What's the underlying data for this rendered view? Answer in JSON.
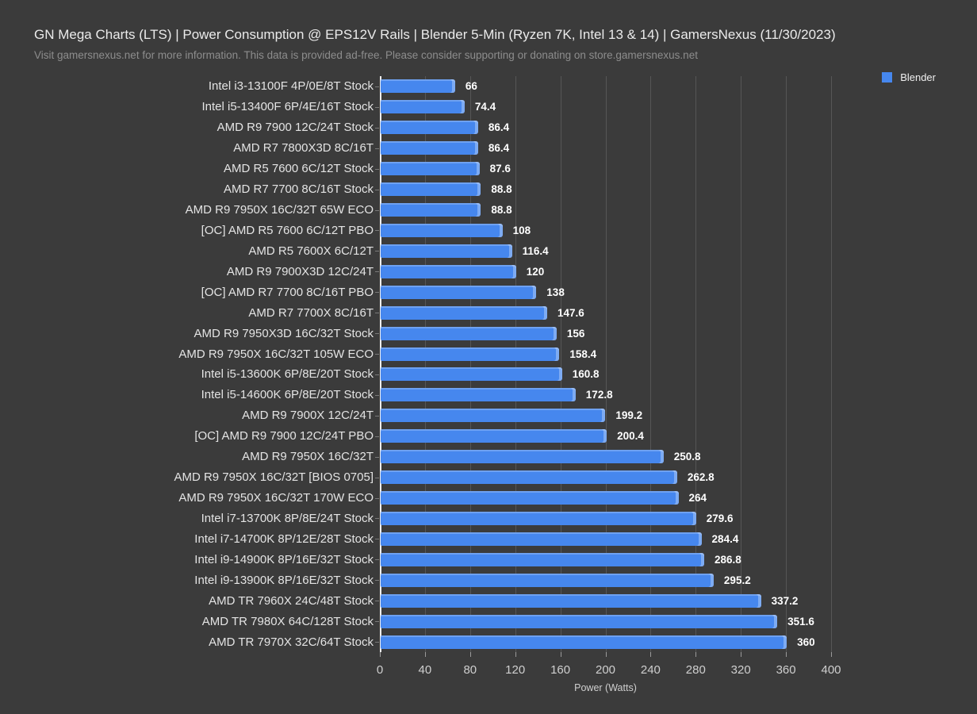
{
  "header": {
    "title": "GN Mega Charts (LTS) | Power Consumption @ EPS12V Rails | Blender 5-Min (Ryzen 7K, Intel 13 & 14) | GamersNexus (11/30/2023)",
    "subtitle": "Visit gamersnexus.net for more information. This data is provided ad-free. Please consider supporting or donating on store.gamersnexus.net"
  },
  "legend": {
    "position": "top-right",
    "items": [
      {
        "label": "Blender",
        "color": "#4687ee"
      }
    ]
  },
  "colors": {
    "background": "#3b3b3b",
    "bar": "#4687ee",
    "gridline": "#565656",
    "axis_line": "#eeeeee",
    "title_text": "#ebebeb",
    "subtitle_text": "#8d8d8d",
    "category_text": "#e4e4e4",
    "value_text": "#ffffff",
    "tick_text": "#cfcfcf"
  },
  "chart_data": {
    "type": "bar",
    "orientation": "horizontal",
    "title": "GN Mega Charts (LTS) | Power Consumption @ EPS12V Rails | Blender 5-Min (Ryzen 7K, Intel 13 & 14) | GamersNexus (11/30/2023)",
    "xlabel": "Power (Watts)",
    "ylabel": "",
    "xlim": [
      0,
      400
    ],
    "xticks": [
      0,
      40,
      80,
      120,
      160,
      200,
      240,
      280,
      320,
      360,
      400
    ],
    "grid": true,
    "legend_position": "top-right",
    "series_name": "Blender",
    "categories": [
      "Intel i3-13100F 4P/0E/8T Stock",
      "Intel i5-13400F 6P/4E/16T Stock",
      "AMD R9 7900 12C/24T Stock",
      "AMD R7 7800X3D 8C/16T",
      "AMD R5 7600 6C/12T Stock",
      "AMD R7 7700 8C/16T Stock",
      "AMD R9 7950X 16C/32T 65W ECO",
      "[OC] AMD R5 7600 6C/12T PBO",
      "AMD R5 7600X 6C/12T",
      "AMD R9 7900X3D 12C/24T",
      "[OC] AMD R7 7700 8C/16T PBO",
      "AMD R7 7700X 8C/16T",
      "AMD R9 7950X3D 16C/32T Stock",
      "AMD R9 7950X 16C/32T 105W ECO",
      "Intel i5-13600K 6P/8E/20T Stock",
      "Intel i5-14600K 6P/8E/20T Stock",
      "AMD R9 7900X 12C/24T",
      "[OC] AMD R9 7900 12C/24T PBO",
      "AMD R9 7950X 16C/32T",
      "AMD R9 7950X 16C/32T [BIOS 0705]",
      "AMD R9 7950X 16C/32T 170W ECO",
      "Intel i7-13700K 8P/8E/24T Stock",
      "Intel i7-14700K 8P/12E/28T Stock",
      "Intel i9-14900K 8P/16E/32T Stock",
      "Intel i9-13900K 8P/16E/32T Stock",
      "AMD TR 7960X 24C/48T Stock",
      "AMD TR 7980X 64C/128T Stock",
      "AMD TR 7970X 32C/64T Stock"
    ],
    "values": [
      66,
      74.4,
      86.4,
      86.4,
      87.6,
      88.8,
      88.8,
      108,
      116.4,
      120,
      138,
      147.6,
      156,
      158.4,
      160.8,
      172.8,
      199.2,
      200.4,
      250.8,
      262.8,
      264,
      279.6,
      284.4,
      286.8,
      295.2,
      337.2,
      351.6,
      360
    ]
  }
}
